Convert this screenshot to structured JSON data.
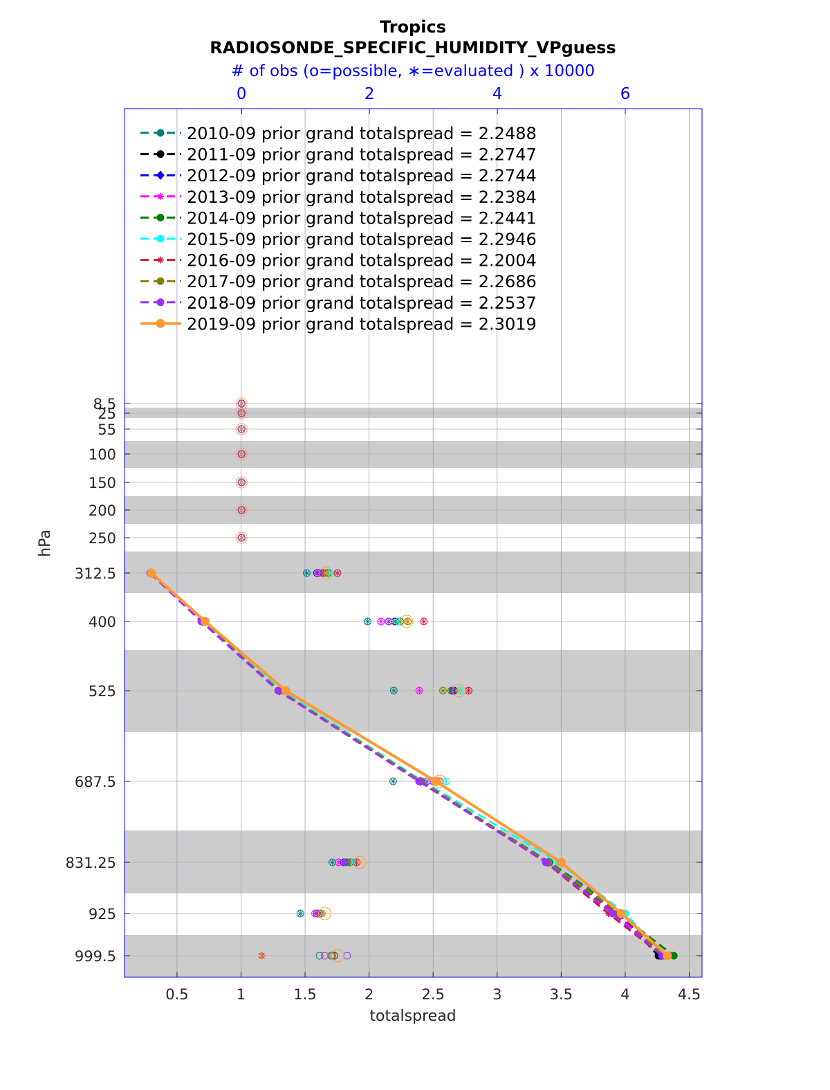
{
  "chart_data": {
    "type": "line",
    "title": "Tropics",
    "subtitle": "RADIOSONDE_SPECIFIC_HUMIDITY_VPguess",
    "xlabel": "totalspread",
    "ylabel": "hPa",
    "top_xlabel": "# of obs (o=possible, ∗=evaluated ) x 10000",
    "xlim": [
      0.09,
      4.6
    ],
    "top_xlim": [
      -1.83,
      7.2
    ],
    "x_ticks": [
      "0.5",
      "1",
      "1.5",
      "2",
      "2.5",
      "3",
      "3.5",
      "4",
      "4.5"
    ],
    "top_x_ticks": [
      "0",
      "2",
      "4",
      "6"
    ],
    "y_ticks": [
      "8.5",
      "25",
      "55",
      "100",
      "150",
      "200",
      "250",
      "312.5",
      "400",
      "525",
      "687.5",
      "831.25",
      "925",
      "999.5"
    ],
    "y_direction": "reversed",
    "grid": true,
    "legend_position": "top-left",
    "levels": [
      8.5,
      25,
      55,
      100,
      150,
      200,
      250,
      312.5,
      400,
      525,
      687.5,
      831.25,
      925,
      999.5
    ],
    "series": [
      {
        "name": "2010-09 prior grand totalspread = 2.2488",
        "color": "#008080",
        "marker": "circle",
        "style": "dashed",
        "levels": [
          312.5,
          400,
          525,
          687.5,
          831.25,
          925,
          999.5
        ],
        "values": [
          0.3,
          0.72,
          1.31,
          2.4,
          3.41,
          4.0,
          4.3
        ],
        "obs_possible": [
          1.02,
          1.97,
          2.38,
          2.37,
          1.42,
          0.92,
          1.22
        ],
        "obs_evaluated": [
          1.02,
          1.97,
          2.38,
          2.37,
          1.42,
          0.92,
          0.32
        ]
      },
      {
        "name": "2011-09 prior grand totalspread = 2.2747",
        "color": "#000000",
        "marker": "circle",
        "style": "dashed",
        "levels": [
          312.5,
          400,
          525,
          687.5,
          831.25,
          925,
          999.5
        ],
        "values": [
          0.3,
          0.7,
          1.3,
          2.4,
          3.4,
          3.95,
          4.26
        ],
        "obs_possible": [
          1.28,
          2.4,
          3.32,
          3.0,
          1.65,
          1.25,
          1.45
        ],
        "obs_evaluated": [
          1.28,
          2.4,
          3.32,
          3.0,
          1.65,
          1.25,
          0.3
        ]
      },
      {
        "name": "2012-09 prior grand totalspread = 2.2744",
        "color": "#0000ff",
        "marker": "diamond",
        "style": "dashed",
        "levels": [
          312.5,
          400,
          525,
          687.5,
          831.25,
          925,
          999.5
        ],
        "values": [
          0.3,
          0.7,
          1.3,
          2.4,
          3.4,
          3.95,
          4.28
        ],
        "obs_possible": [
          1.18,
          2.3,
          3.3,
          3.05,
          1.6,
          1.18,
          1.4
        ],
        "obs_evaluated": [
          1.18,
          2.3,
          3.3,
          3.05,
          1.6,
          1.18,
          0.3
        ]
      },
      {
        "name": "2013-09 prior grand totalspread = 2.2384",
        "color": "#ff00ff",
        "marker": "asterisk",
        "style": "dashed",
        "levels": [
          312.5,
          400,
          525,
          687.5,
          831.25,
          925,
          999.5
        ],
        "values": [
          0.29,
          0.69,
          1.29,
          2.39,
          3.39,
          3.92,
          4.3
        ],
        "obs_possible": [
          1.22,
          2.18,
          2.78,
          3.0,
          1.52,
          1.15,
          1.3
        ],
        "obs_evaluated": [
          1.22,
          2.18,
          2.78,
          3.0,
          1.52,
          1.15,
          0.3
        ]
      },
      {
        "name": "2014-09 prior grand totalspread = 2.2441",
        "color": "#008000",
        "marker": "circle",
        "style": "dashed",
        "levels": [
          312.5,
          400,
          525,
          687.5,
          831.25,
          925,
          999.5
        ],
        "values": [
          0.3,
          0.7,
          1.3,
          2.4,
          3.39,
          3.95,
          4.38
        ],
        "obs_possible": [
          1.35,
          2.48,
          3.28,
          3.05,
          1.7,
          1.22,
          1.42
        ],
        "obs_evaluated": [
          1.35,
          2.48,
          3.28,
          3.05,
          1.7,
          1.22,
          0.3
        ]
      },
      {
        "name": "2015-09 prior grand totalspread = 2.2946",
        "color": "#00ffff",
        "marker": "circle",
        "style": "dashed",
        "levels": [
          312.5,
          400,
          525,
          687.5,
          831.25,
          925,
          999.5
        ],
        "values": [
          0.3,
          0.71,
          1.32,
          2.42,
          3.48,
          4.0,
          4.3
        ],
        "obs_possible": [
          1.4,
          2.45,
          3.42,
          3.2,
          1.75,
          1.25,
          1.4
        ],
        "obs_evaluated": [
          1.4,
          2.45,
          3.42,
          3.2,
          1.75,
          1.25,
          0.3
        ]
      },
      {
        "name": "2016-09 prior grand totalspread = 2.2004",
        "color": "#dc143c",
        "marker": "asterisk",
        "style": "dashed",
        "levels": [
          312.5,
          400,
          525,
          687.5,
          831.25,
          925,
          999.5
        ],
        "values": [
          0.3,
          0.7,
          1.3,
          2.4,
          3.38,
          3.87,
          4.29
        ],
        "obs_possible": [
          1.5,
          2.85,
          3.55,
          3.1,
          1.8,
          1.22,
          1.45
        ],
        "obs_evaluated": [
          1.5,
          2.85,
          3.55,
          3.1,
          1.8,
          1.22,
          0.32
        ]
      },
      {
        "name": "2017-09 prior grand totalspread = 2.2686",
        "color": "#808000",
        "marker": "circle",
        "style": "dashed",
        "levels": [
          312.5,
          400,
          525,
          687.5,
          831.25,
          925,
          999.5
        ],
        "values": [
          0.3,
          0.7,
          1.3,
          2.41,
          3.4,
          3.96,
          4.3
        ],
        "obs_possible": [
          1.3,
          2.6,
          3.15,
          3.05,
          1.65,
          1.22,
          1.4
        ],
        "obs_evaluated": [
          1.3,
          2.6,
          3.15,
          3.05,
          1.65,
          1.22,
          0.3
        ]
      },
      {
        "name": "2018-09 prior grand totalspread = 2.2537",
        "color": "#9b30ff",
        "marker": "circle",
        "style": "dashed",
        "levels": [
          312.5,
          400,
          525,
          687.5,
          831.25,
          925,
          999.5
        ],
        "values": [
          0.29,
          0.69,
          1.29,
          2.39,
          3.38,
          3.9,
          4.29
        ],
        "obs_possible": [
          1.25,
          2.3,
          3.3,
          2.9,
          1.62,
          1.18,
          1.65
        ],
        "obs_evaluated": [
          1.25,
          2.3,
          3.3,
          2.9,
          1.62,
          1.18,
          0.3
        ]
      },
      {
        "name": "2019-09 prior grand totalspread = 2.3019",
        "color": "#ff9933",
        "marker": "circle",
        "style": "solid",
        "levels": [
          312.5,
          400,
          525,
          687.5,
          831.25,
          925,
          999.5
        ],
        "values": [
          0.3,
          0.72,
          1.35,
          2.52,
          3.5,
          3.97,
          4.33
        ],
        "obs_possible": [
          1.32,
          2.58,
          3.4,
          3.1,
          1.85,
          1.3,
          1.5
        ],
        "obs_evaluated": [
          1.32,
          2.58,
          3.4,
          3.1,
          1.85,
          1.3,
          0.3
        ]
      }
    ]
  }
}
